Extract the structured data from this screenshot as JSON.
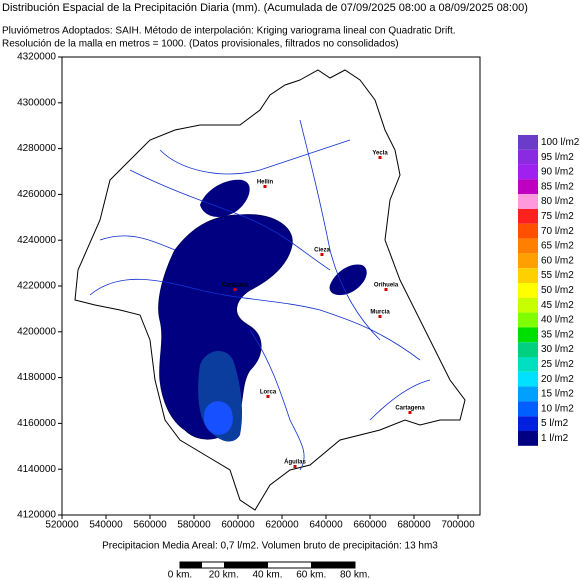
{
  "header": {
    "title": "Distribución Espacial de la Precipitación Diaria (mm). (Acumulada de 07/09/2025 08:00 a 08/09/2025 08:00)",
    "method": "Pluviómetros Adoptados: SAIH.  Método de interpolación: Kriging variograma lineal con Quadratic Drift.",
    "resolution": "Resolución de la malla en metros = 1000. (Datos provisionales, filtrados no consolidados)"
  },
  "map": {
    "xlim": [
      520000,
      710000
    ],
    "ylim": [
      4120000,
      4320000
    ],
    "xticks": [
      520000,
      540000,
      560000,
      580000,
      600000,
      620000,
      640000,
      660000,
      680000,
      700000
    ],
    "yticks": [
      4120000,
      4140000,
      4160000,
      4180000,
      4200000,
      4220000,
      4240000,
      4260000,
      4280000,
      4300000,
      4320000
    ],
    "cities": [
      "Yecla",
      "Hellín",
      "Cieza",
      "Caravaca",
      "Orihuela",
      "Murcia",
      "Lorca",
      "Cartagena",
      "Águilas"
    ]
  },
  "legend": {
    "items": [
      {
        "label": "100 l/m2",
        "color": "#6a3cc8"
      },
      {
        "label": "95 l/m2",
        "color": "#8a2be2"
      },
      {
        "label": "90 l/m2",
        "color": "#a020f0"
      },
      {
        "label": "85 l/m2",
        "color": "#c000c0"
      },
      {
        "label": "80 l/m2",
        "color": "#ff99dd"
      },
      {
        "label": "75 l/m2",
        "color": "#ff2020"
      },
      {
        "label": "70 l/m2",
        "color": "#ff5000"
      },
      {
        "label": "65 l/m2",
        "color": "#ff8000"
      },
      {
        "label": "60 l/m2",
        "color": "#ffa000"
      },
      {
        "label": "55 l/m2",
        "color": "#ffd000"
      },
      {
        "label": "50 l/m2",
        "color": "#ffff00"
      },
      {
        "label": "45 l/m2",
        "color": "#c8ff00"
      },
      {
        "label": "40 l/m2",
        "color": "#80ff00"
      },
      {
        "label": "35 l/m2",
        "color": "#00e000"
      },
      {
        "label": "30 l/m2",
        "color": "#00d080"
      },
      {
        "label": "25 l/m2",
        "color": "#00e0c0"
      },
      {
        "label": "20 l/m2",
        "color": "#00e0ff"
      },
      {
        "label": "15 l/m2",
        "color": "#00a0ff"
      },
      {
        "label": "10 l/m2",
        "color": "#0060ff"
      },
      {
        "label": "5 l/m2",
        "color": "#0020e0"
      },
      {
        "label": "1 l/m2",
        "color": "#000080"
      }
    ]
  },
  "footer": {
    "summary": "Precipitacion Media Areal: 0,7 l/m2. Volumen bruto de precipitación: 13 hm3",
    "scale": [
      "0 km.",
      "20 km.",
      "40 km.",
      "60 km.",
      "80 km."
    ]
  }
}
